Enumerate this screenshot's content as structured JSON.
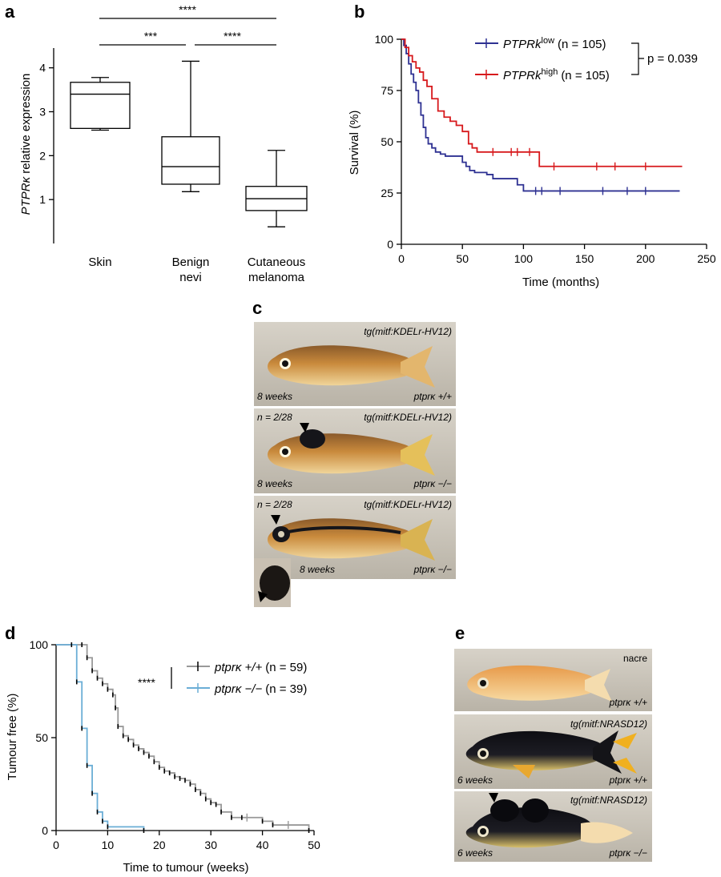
{
  "panels": {
    "a": {
      "letter": "a",
      "ylabel_italic": "PTPRκ",
      "ylabel_rest": " relative expression",
      "significance": [
        "****",
        "***",
        "****"
      ],
      "chart_data": {
        "type": "box",
        "categories": [
          [
            "Skin"
          ],
          [
            "Benign",
            "nevi"
          ],
          [
            "Cutaneous",
            "melanoma"
          ]
        ],
        "boxes": [
          {
            "min": 2.58,
            "q1": 2.62,
            "median": 3.4,
            "q3": 3.67,
            "max": 3.78
          },
          {
            "min": 1.18,
            "q1": 1.35,
            "median": 1.75,
            "q3": 2.43,
            "max": 4.15
          },
          {
            "min": 0.38,
            "q1": 0.75,
            "median": 1.02,
            "q3": 1.3,
            "max": 2.12
          }
        ],
        "yticks": [
          "1",
          "2",
          "3",
          "4"
        ],
        "ylim": [
          0,
          4.45
        ]
      }
    },
    "b": {
      "letter": "b",
      "ylabel": "Survival (%)",
      "xlabel": "Time (months)",
      "pvalue": "p = 0.039",
      "chart_data": {
        "type": "line",
        "xlim": [
          0,
          250
        ],
        "ylim": [
          0,
          100
        ],
        "xticks": [
          "0",
          "50",
          "100",
          "150",
          "200",
          "250"
        ],
        "yticks": [
          "0",
          "25",
          "50",
          "75",
          "100"
        ],
        "series": [
          {
            "name": "PTPRk",
            "superscript": "low",
            "n_text": "(n = 105)",
            "color": "#2e3192",
            "x": [
              0,
              2,
              4,
              6,
              8,
              10,
              12,
              14,
              16,
              18,
              20,
              22,
              25,
              28,
              32,
              36,
              40,
              45,
              50,
              53,
              56,
              60,
              65,
              70,
              75,
              85,
              95,
              100,
              228
            ],
            "y": [
              100,
              97,
              93,
              88,
              83,
              79,
              75,
              69,
              63,
              57,
              52,
              49,
              47,
              45,
              44,
              43,
              43,
              43,
              40,
              38,
              36,
              35,
              35,
              34,
              32,
              32,
              29,
              26,
              26
            ],
            "censors": [
              [
                110,
                26
              ],
              [
                115,
                26
              ],
              [
                130,
                26
              ],
              [
                165,
                26
              ],
              [
                185,
                26
              ],
              [
                200,
                26
              ]
            ]
          },
          {
            "name": "PTPRk",
            "superscript": "high",
            "n_text": "(n = 105)",
            "color": "#d7191c",
            "x": [
              0,
              3,
              6,
              9,
              12,
              15,
              18,
              21,
              25,
              30,
              35,
              40,
              45,
              50,
              55,
              58,
              62,
              70,
              80,
              100,
              113,
              230
            ],
            "y": [
              100,
              96,
              92,
              89,
              86,
              84,
              80,
              77,
              71,
              65,
              62,
              60,
              58,
              55,
              49,
              47,
              45,
              45,
              45,
              45,
              38,
              38
            ],
            "censors": [
              [
                75,
                45
              ],
              [
                90,
                45
              ],
              [
                95,
                45
              ],
              [
                105,
                45
              ],
              [
                125,
                38
              ],
              [
                160,
                38
              ],
              [
                175,
                38
              ],
              [
                200,
                38
              ]
            ]
          }
        ]
      }
    },
    "c": {
      "letter": "c",
      "photos": [
        {
          "genotype_tl": "tg(mitf:KDELr-HV12)",
          "count": "",
          "age": "8 weeks",
          "genotype": "ptprκ +/+"
        },
        {
          "genotype_tl": "tg(mitf:KDELr-HV12)",
          "count": "n = 2/28",
          "age": "8 weeks",
          "genotype": "ptprκ −/−"
        },
        {
          "genotype_tl": "tg(mitf:KDELr-HV12)",
          "count": "n = 2/28",
          "age": "8 weeks",
          "genotype": "ptprκ −/−"
        }
      ]
    },
    "d": {
      "letter": "d",
      "ylabel": "Tumour free (%)",
      "xlabel": "Time to tumour (weeks)",
      "significance": "****",
      "chart_data": {
        "type": "line",
        "xlim": [
          0,
          50
        ],
        "ylim": [
          0,
          100
        ],
        "xticks": [
          "0",
          "10",
          "20",
          "30",
          "40",
          "50"
        ],
        "yticks": [
          "0",
          "50",
          "100"
        ],
        "series": [
          {
            "name": "ptprκ +/+",
            "n_text": "(n = 59)",
            "color": "#999999",
            "x": [
              0,
              5,
              6,
              7,
              8,
              9,
              10,
              11,
              11.5,
              12,
              13,
              14,
              15,
              16,
              17,
              18,
              19,
              20,
              21,
              22,
              23,
              24,
              25,
              26,
              27,
              28,
              29,
              30,
              31,
              32,
              34,
              36,
              40,
              42,
              49
            ],
            "y": [
              100,
              100,
              93,
              86,
              82,
              79,
              76,
              73,
              66,
              56,
              51,
              49,
              46,
              44,
              42,
              40,
              37,
              34,
              32,
              31,
              29,
              28,
              27,
              25,
              22,
              20,
              17,
              15,
              14,
              10,
              7,
              7,
              5,
              3,
              0
            ],
            "censors": [
              [
                37,
                7
              ],
              [
                45,
                3
              ]
            ]
          },
          {
            "name": "ptprκ −/−",
            "n_text": "(n = 39)",
            "color": "#6baed6",
            "x": [
              0,
              3,
              4,
              5,
              6,
              7,
              8,
              9,
              10,
              17
            ],
            "y": [
              100,
              100,
              80,
              55,
              35,
              20,
              10,
              5,
              2,
              0
            ],
            "censors": []
          }
        ]
      }
    },
    "e": {
      "letter": "e",
      "photos": [
        {
          "genotype_tl": "nacre",
          "age": "",
          "genotype": "ptprκ +/+"
        },
        {
          "genotype_tl": "tg(mitf:NRASD12)",
          "age": "6 weeks",
          "genotype": "ptprκ +/+"
        },
        {
          "genotype_tl": "tg(mitf:NRASD12)",
          "age": "6 weeks",
          "genotype": "ptprκ −/−"
        }
      ]
    }
  }
}
